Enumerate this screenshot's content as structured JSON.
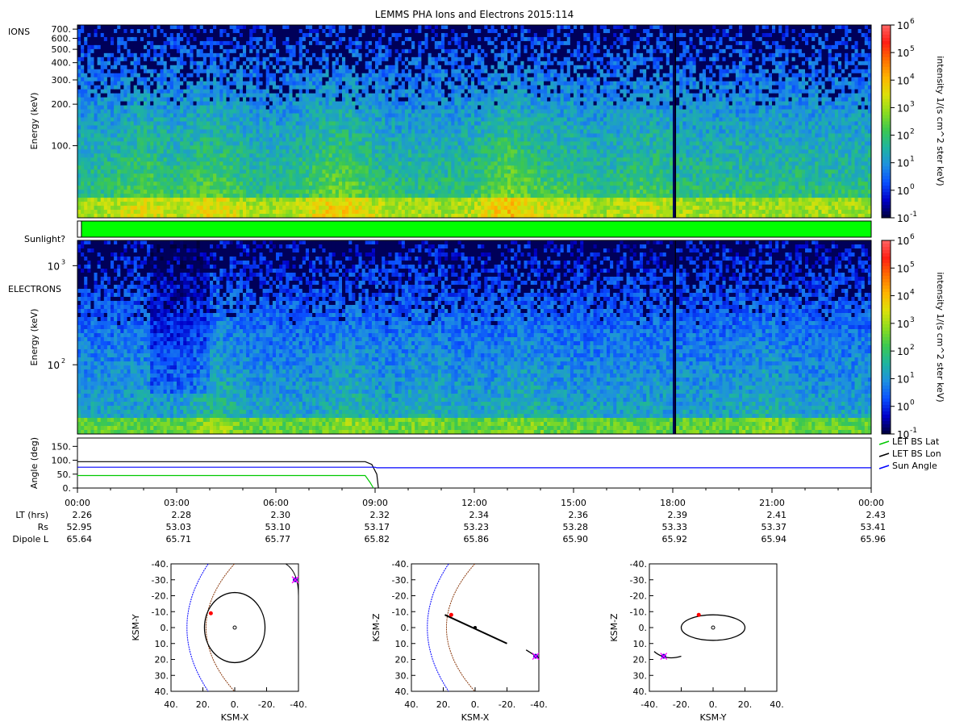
{
  "title": "LEMMS PHA Ions and Electrons  2015:114",
  "colors": {
    "colormap": [
      "#00003a",
      "#0000c8",
      "#0a50ff",
      "#1e90e0",
      "#1eb4a0",
      "#3cc850",
      "#8cdc1e",
      "#dce10a",
      "#ffb400",
      "#ff6e00",
      "#ff1e14",
      "#ff6464"
    ],
    "sunlight_bar": "#00ff00",
    "lat_line": "#00c800",
    "lon_line": "#000000",
    "sun_line": "#0000ff",
    "magnetopause": "#8b3a0e",
    "bow_shock": "#0000ff"
  },
  "chart_data": [
    {
      "type": "heatmap",
      "panel": "ions",
      "panel_label": "IONS",
      "ylabel": "Energy (keV)",
      "yscale": "log",
      "ylim": [
        30,
        750
      ],
      "yticks": [
        "700.",
        "600.",
        "500.",
        "400.",
        "300.",
        "200.",
        "100."
      ],
      "ytick_values": [
        700,
        600,
        500,
        400,
        300,
        200,
        100
      ],
      "xlim_hours": [
        0,
        24
      ],
      "colorbar_label": "intensity 1/(s cm^2 ster keV)",
      "colorbar_range_log10": [
        -1,
        6
      ],
      "colorbar_ticks": [
        {
          "base": "10",
          "exp": "6"
        },
        {
          "base": "10",
          "exp": "5"
        },
        {
          "base": "10",
          "exp": "4"
        },
        {
          "base": "10",
          "exp": "3"
        },
        {
          "base": "10",
          "exp": "2"
        },
        {
          "base": "10",
          "exp": "1"
        },
        {
          "base": "10",
          "exp": "0"
        },
        {
          "base": "10",
          "exp": "-1"
        }
      ],
      "data_gap_hour": 18.08
    },
    {
      "type": "bar",
      "panel": "sunlight",
      "label": "Sunlight?",
      "state": "sunlit",
      "coverage": [
        0.005,
        1.0
      ]
    },
    {
      "type": "heatmap",
      "panel": "electrons",
      "panel_label": "ELECTRONS",
      "ylabel": "Energy (keV)",
      "yscale": "log",
      "ylim": [
        20,
        1800
      ],
      "yticks": [
        {
          "base": "10",
          "exp": "3"
        },
        {
          "base": "10",
          "exp": "2"
        }
      ],
      "ytick_values": [
        1000,
        100
      ],
      "xlim_hours": [
        0,
        24
      ],
      "colorbar_label": "intensity 1/(s cm^2 ster keV)",
      "colorbar_range_log10": [
        -1,
        6
      ],
      "colorbar_ticks": [
        {
          "base": "10",
          "exp": "6"
        },
        {
          "base": "10",
          "exp": "5"
        },
        {
          "base": "10",
          "exp": "4"
        },
        {
          "base": "10",
          "exp": "3"
        },
        {
          "base": "10",
          "exp": "2"
        },
        {
          "base": "10",
          "exp": "1"
        },
        {
          "base": "10",
          "exp": "0"
        },
        {
          "base": "10",
          "exp": "-1"
        }
      ],
      "data_gap_hour": 18.08
    },
    {
      "type": "line",
      "panel": "angle",
      "ylabel": "Angle (deg)",
      "ylim": [
        0,
        180
      ],
      "yticks": [
        "150.",
        "100.",
        "50.",
        "0."
      ],
      "ytick_values": [
        150,
        100,
        50,
        0
      ],
      "xlim_hours": [
        0,
        24
      ],
      "legend": "right",
      "series": [
        {
          "name": "LET BS Lat",
          "color": "#00c800",
          "x": [
            0,
            8.7,
            8.85,
            8.95
          ],
          "y": [
            45,
            45,
            20,
            0
          ]
        },
        {
          "name": "LET BS Lon",
          "color": "#000000",
          "x": [
            0,
            8.7,
            8.9,
            9.05,
            9.1
          ],
          "y": [
            95,
            95,
            85,
            50,
            0
          ]
        },
        {
          "name": "Sun Angle",
          "color": "#0000ff",
          "x": [
            0,
            9.0,
            9.05,
            24
          ],
          "y": [
            75,
            75,
            73,
            73
          ]
        }
      ]
    },
    {
      "type": "table",
      "panel": "ephemeris",
      "x_ticks": [
        "00:00",
        "03:00",
        "06:00",
        "09:00",
        "12:00",
        "15:00",
        "18:00",
        "21:00",
        "00:00"
      ],
      "rows": [
        {
          "label": "LT (hrs)",
          "values": [
            "2.26",
            "2.28",
            "2.30",
            "2.32",
            "2.34",
            "2.36",
            "2.39",
            "2.41",
            "2.43"
          ]
        },
        {
          "label": "Rs",
          "values": [
            "52.95",
            "53.03",
            "53.10",
            "53.17",
            "53.23",
            "53.28",
            "53.33",
            "53.37",
            "53.41"
          ]
        },
        {
          "label": "Dipole L",
          "values": [
            "65.64",
            "65.71",
            "65.77",
            "65.82",
            "65.86",
            "65.90",
            "65.92",
            "65.94",
            "65.96"
          ]
        }
      ]
    },
    {
      "type": "scatter",
      "panel": "orbit-xy",
      "xlabel": "KSM-X",
      "ylabel": "KSM-Y",
      "xlim": [
        40,
        -40
      ],
      "ylim": [
        -40,
        40
      ],
      "xticks": [
        "40.",
        "20.",
        "0.",
        "-20.",
        "-40."
      ],
      "xtick_values": [
        40,
        20,
        0,
        -20,
        -40
      ],
      "yticks": [
        "-40.",
        "-30.",
        "-20.",
        "-10.",
        "0.",
        "10.",
        "20.",
        "30.",
        "40."
      ],
      "ytick_values": [
        -40,
        -30,
        -20,
        -10,
        0,
        10,
        20,
        30,
        40
      ],
      "orbit_ellipse": {
        "cx": 0,
        "cy": 0,
        "rx": 19,
        "ry": 22
      },
      "start_point": [
        15,
        -9
      ],
      "end_point": [
        -38,
        -30
      ]
    },
    {
      "type": "scatter",
      "panel": "orbit-xz",
      "xlabel": "KSM-X",
      "ylabel": "KSM-Z",
      "xlim": [
        40,
        -40
      ],
      "ylim": [
        -40,
        40
      ],
      "xticks": [
        "40.",
        "20.",
        "0.",
        "-20.",
        "-40."
      ],
      "xtick_values": [
        40,
        20,
        0,
        -20,
        -40
      ],
      "yticks": [
        "40.",
        "30.",
        "20.",
        "10.",
        "0.",
        "-10.",
        "-20.",
        "-30.",
        "-40."
      ],
      "ytick_values": [
        40,
        30,
        20,
        10,
        0,
        -10,
        -20,
        -30,
        -40
      ],
      "orbit_line": [
        [
          19,
          -8
        ],
        [
          -20,
          10
        ]
      ],
      "start_point": [
        15,
        -8
      ],
      "end_point": [
        -38,
        18
      ]
    },
    {
      "type": "scatter",
      "panel": "orbit-yz",
      "xlabel": "KSM-Y",
      "ylabel": "KSM-Z",
      "xlim": [
        -40,
        40
      ],
      "ylim": [
        -40,
        40
      ],
      "xticks": [
        "-40.",
        "-20.",
        "0.",
        "20.",
        "40."
      ],
      "xtick_values": [
        -40,
        -20,
        0,
        20,
        40
      ],
      "yticks": [
        "40.",
        "30.",
        "20.",
        "10.",
        "0.",
        "-10.",
        "-20.",
        "-30.",
        "-40."
      ],
      "ytick_values": [
        40,
        30,
        20,
        10,
        0,
        -10,
        -20,
        -30,
        -40
      ],
      "orbit_ellipse": {
        "cx": 0,
        "cy": 0,
        "rx": 20,
        "ry": 8
      },
      "start_point": [
        -9,
        -8
      ],
      "end_point": [
        -31,
        18
      ]
    }
  ]
}
